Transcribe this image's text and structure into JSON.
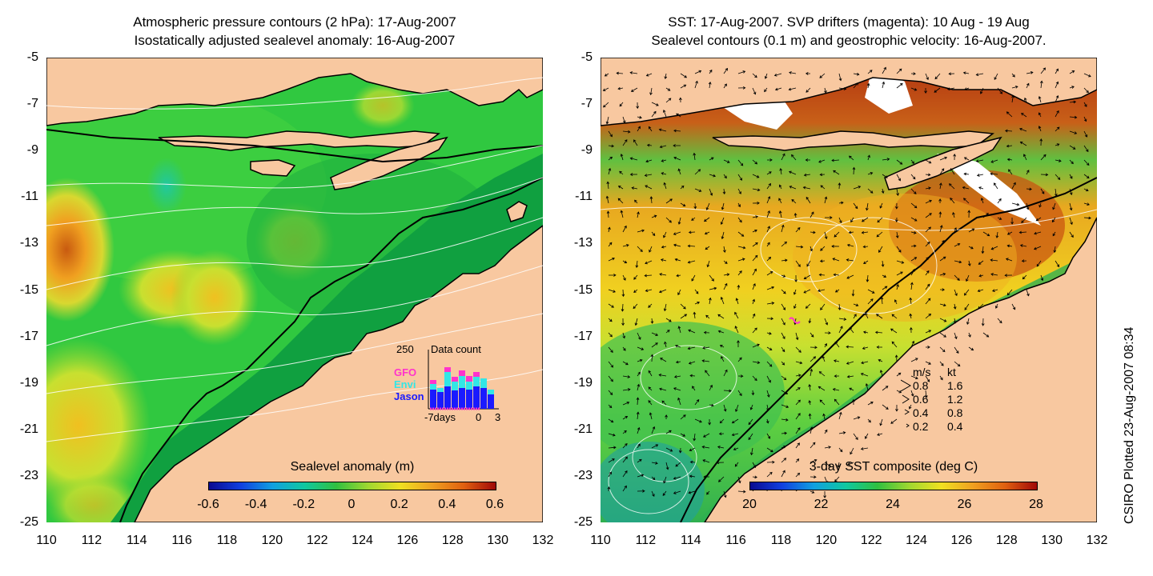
{
  "left_panel": {
    "title_line1": "Atmospheric pressure contours (2 hPa): 17-Aug-2007",
    "title_line2": "Isostatically adjusted sealevel anomaly: 16-Aug-2007",
    "colorbar_title": "Sealevel anomaly (m)",
    "colorbar_ticks": [
      "-0.6",
      "-0.4",
      "-0.2",
      "0",
      "0.2",
      "0.4",
      "0.6"
    ],
    "data_count": {
      "title": "Data count",
      "max_label": "250",
      "series": [
        {
          "name": "GFO",
          "color": "#ff33cc"
        },
        {
          "name": "Envi",
          "color": "#33e6e6"
        },
        {
          "name": "Jason",
          "color": "#1a1aff"
        }
      ],
      "axis_labels": [
        "-7days",
        "0",
        "3"
      ]
    }
  },
  "right_panel": {
    "title_line1": "SST: 17-Aug-2007. SVP drifters (magenta): 10 Aug - 19 Aug",
    "title_line2": "Sealevel contours (0.1 m) and geostrophic velocity: 16-Aug-2007.",
    "colorbar_title": "3-day SST composite (deg C)",
    "colorbar_ticks": [
      "20",
      "22",
      "24",
      "26",
      "28"
    ],
    "velocity_legend": {
      "header_ms": "m/s",
      "header_kt": "kt",
      "rows": [
        {
          "ms": "0.8",
          "kt": "1.6"
        },
        {
          "ms": "0.6",
          "kt": "1.2"
        },
        {
          "ms": "0.4",
          "kt": "0.8"
        },
        {
          "ms": "0.2",
          "kt": "0.4"
        }
      ]
    }
  },
  "axes": {
    "y_ticks": [
      "-5",
      "-7",
      "-9",
      "-11",
      "-13",
      "-15",
      "-17",
      "-19",
      "-21",
      "-23",
      "-25"
    ],
    "x_ticks": [
      "110",
      "112",
      "114",
      "116",
      "118",
      "120",
      "122",
      "124",
      "126",
      "128",
      "130",
      "132"
    ],
    "lon_range": [
      110,
      132
    ],
    "lat_range": [
      -25,
      -5
    ]
  },
  "credit": "CSIRO Plotted 23-Aug-2007 08:34",
  "colors": {
    "land": "#f8c8a0",
    "ocean_green": "#19c040",
    "coast": "#000000",
    "contour": "#ffffff"
  }
}
